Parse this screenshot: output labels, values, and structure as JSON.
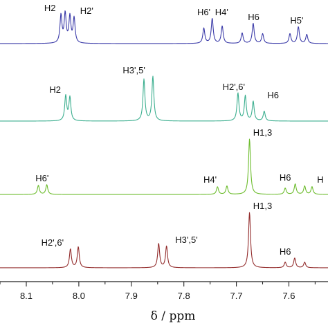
{
  "chart_data": {
    "type": "line",
    "title": "",
    "xlabel": "δ / ppm",
    "ylabel": "",
    "x_reversed": true,
    "xlim": [
      8.16,
      7.54
    ],
    "xticks": [
      8.1,
      8.0,
      7.9,
      7.8,
      7.7,
      7.6
    ],
    "xtick_labels": [
      "8.1",
      "8.0",
      "7.9",
      "7.8",
      "7.7",
      "7.6"
    ],
    "grid": false,
    "series": [
      {
        "color": "#3a3aa8",
        "peaks": [
          {
            "ppm": 8.034,
            "h": 40
          },
          {
            "ppm": 8.026,
            "h": 42
          },
          {
            "ppm": 8.017,
            "h": 38
          },
          {
            "ppm": 8.009,
            "h": 36
          },
          {
            "ppm": 7.762,
            "h": 22
          },
          {
            "ppm": 7.746,
            "h": 36
          },
          {
            "ppm": 7.727,
            "h": 25
          },
          {
            "ppm": 7.689,
            "h": 15
          },
          {
            "ppm": 7.668,
            "h": 29
          },
          {
            "ppm": 7.65,
            "h": 14
          },
          {
            "ppm": 7.598,
            "h": 14
          },
          {
            "ppm": 7.582,
            "h": 24
          },
          {
            "ppm": 7.566,
            "h": 13
          }
        ],
        "annotations": [
          {
            "text": "H2",
            "ppm": 8.055
          },
          {
            "text": "H2'",
            "ppm": 7.985
          },
          {
            "text": "H6'",
            "ppm": 7.762
          },
          {
            "text": "H4'",
            "ppm": 7.728
          },
          {
            "text": "H6",
            "ppm": 7.667
          },
          {
            "text": "H5'",
            "ppm": 7.585
          }
        ]
      },
      {
        "color": "#3aae8e",
        "peaks": [
          {
            "ppm": 8.025,
            "h": 36
          },
          {
            "ppm": 8.017,
            "h": 34
          },
          {
            "ppm": 7.876,
            "h": 60
          },
          {
            "ppm": 7.859,
            "h": 64
          },
          {
            "ppm": 7.697,
            "h": 40
          },
          {
            "ppm": 7.683,
            "h": 36
          },
          {
            "ppm": 7.668,
            "h": 28
          },
          {
            "ppm": 7.647,
            "h": 14
          }
        ],
        "annotations": [
          {
            "text": "H2",
            "ppm": 8.045
          },
          {
            "text": "H3',5'",
            "ppm": 7.895
          },
          {
            "text": "H2',6'",
            "ppm": 7.705
          },
          {
            "text": "H6",
            "ppm": 7.63
          }
        ]
      },
      {
        "color": "#6cbc2c",
        "peaks": [
          {
            "ppm": 8.077,
            "h": 13
          },
          {
            "ppm": 8.061,
            "h": 14
          },
          {
            "ppm": 7.736,
            "h": 11
          },
          {
            "ppm": 7.718,
            "h": 12
          },
          {
            "ppm": 7.675,
            "h": 80
          },
          {
            "ppm": 7.607,
            "h": 9
          },
          {
            "ppm": 7.588,
            "h": 15
          },
          {
            "ppm": 7.57,
            "h": 12
          },
          {
            "ppm": 7.556,
            "h": 11
          }
        ],
        "annotations": [
          {
            "text": "H6'",
            "ppm": 8.07
          },
          {
            "text": "H4'",
            "ppm": 7.75
          },
          {
            "text": "H1,3",
            "ppm": 7.65
          },
          {
            "text": "H6",
            "ppm": 7.607
          },
          {
            "text": "H",
            "ppm": 7.54
          }
        ]
      },
      {
        "color": "#922b2b",
        "peaks": [
          {
            "ppm": 8.016,
            "h": 27
          },
          {
            "ppm": 8.001,
            "h": 30
          },
          {
            "ppm": 7.848,
            "h": 35
          },
          {
            "ppm": 7.833,
            "h": 31
          },
          {
            "ppm": 7.675,
            "h": 80
          },
          {
            "ppm": 7.607,
            "h": 8
          },
          {
            "ppm": 7.589,
            "h": 14
          },
          {
            "ppm": 7.57,
            "h": 8
          }
        ],
        "annotations": [
          {
            "text": "H2',6'",
            "ppm": 8.05
          },
          {
            "text": "H3',5'",
            "ppm": 7.795
          },
          {
            "text": "H1,3",
            "ppm": 7.65
          },
          {
            "text": "H6",
            "ppm": 7.607
          }
        ]
      }
    ]
  }
}
